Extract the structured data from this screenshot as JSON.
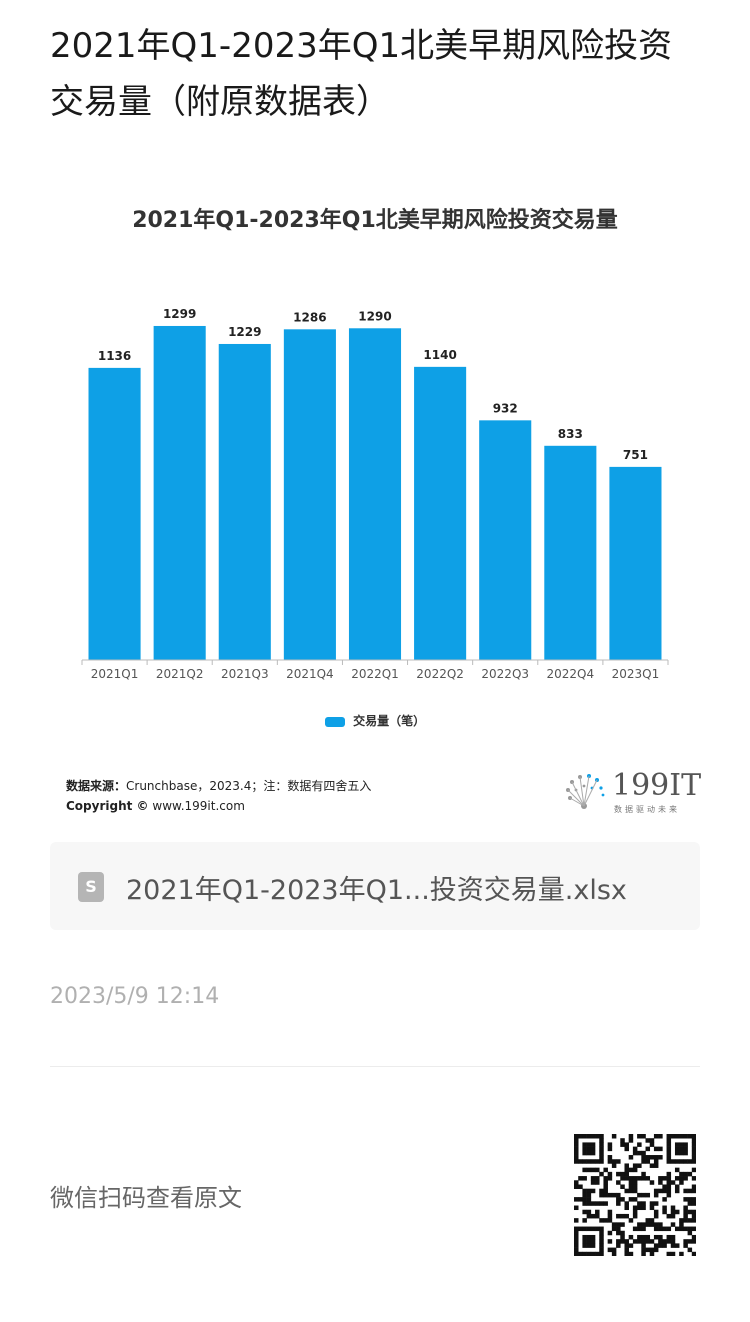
{
  "page": {
    "title": "2021年Q1-2023年Q1北美早期风险投资交易量（附原数据表）"
  },
  "chart_data": {
    "type": "bar",
    "title": "2021年Q1-2023年Q1北美早期风险投资交易量",
    "categories": [
      "2021Q1",
      "2021Q2",
      "2021Q3",
      "2021Q4",
      "2022Q1",
      "2022Q2",
      "2022Q3",
      "2022Q4",
      "2023Q1"
    ],
    "series": [
      {
        "name": "交易量（笔）",
        "values": [
          1136,
          1299,
          1229,
          1286,
          1290,
          1140,
          932,
          833,
          751
        ],
        "color": "#0ea0e6"
      }
    ],
    "ylim": [
      0,
      1400
    ],
    "grid": false,
    "legend": "bottom",
    "data_labels": true
  },
  "source": {
    "label": "数据来源：",
    "text": "Crunchbase，2023.4；注：数据有四舍五入",
    "copyright_label": "Copyright ©",
    "copyright_text": "www.199it.com"
  },
  "brand": {
    "number": "199IT",
    "tagline": "数据驱动未来"
  },
  "file": {
    "icon": "file-s-icon",
    "icon_letter": "S",
    "name": "2021年Q1-2023年Q1...投资交易量.xlsx"
  },
  "meta": {
    "timestamp": "2023/5/9 12:14"
  },
  "footer": {
    "scan_text": "微信扫码查看原文",
    "qr_icon": "qr-code-icon"
  },
  "colors": {
    "bar": "#0ea0e6",
    "axis": "#bbbbbb"
  }
}
